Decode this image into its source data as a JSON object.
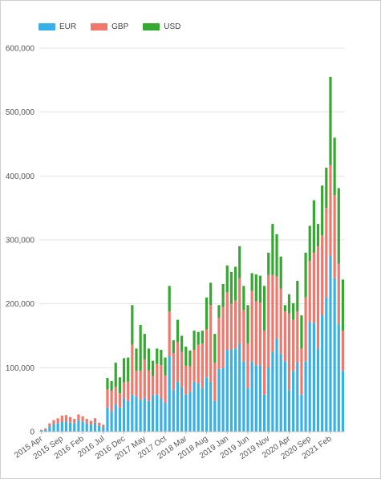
{
  "chart_data": {
    "type": "bar",
    "stacked": true,
    "legend_position": "top-left",
    "grid": true,
    "ylim": [
      0,
      600000
    ],
    "yticks": [
      0,
      100000,
      200000,
      300000,
      400000,
      500000,
      600000
    ],
    "ytick_labels": [
      "0",
      "100,000",
      "200,000",
      "300,000",
      "400,000",
      "500,000",
      "600,000"
    ],
    "xtick_labels": [
      "2015 Apr",
      "2015 Sep",
      "2016 Feb",
      "2016 Jul",
      "2016 Dec",
      "2017 May",
      "2017 Oct",
      "2018 Mar",
      "2018 Aug",
      "2019 Jan",
      "2019 Jun",
      "2019 Nov",
      "2020 Apr",
      "2020 Sep",
      "2021 Feb"
    ],
    "xtick_every": 5,
    "series": [
      {
        "name": "EUR",
        "color": "#36b1e8",
        "values": [
          2000,
          3000,
          8000,
          12000,
          13000,
          15000,
          16000,
          14000,
          13000,
          18000,
          16000,
          13000,
          11000,
          14000,
          9000,
          7000,
          38000,
          32000,
          43000,
          38000,
          52000,
          48000,
          58000,
          55000,
          50000,
          53000,
          48000,
          57000,
          58000,
          52000,
          45000,
          118000,
          65000,
          78000,
          70000,
          58000,
          62000,
          78000,
          76000,
          68000,
          85000,
          78000,
          48000,
          98000,
          100000,
          128000,
          128000,
          130000,
          138000,
          110000,
          68000,
          110000,
          104000,
          104000,
          58000,
          100000,
          125000,
          145000,
          122000,
          110000,
          65000,
          95000,
          108000,
          58000,
          110000,
          172000,
          170000,
          130000,
          182000,
          210000,
          275000,
          240000,
          168000,
          95000
        ]
      },
      {
        "name": "GBP",
        "color": "#f0776b",
        "values": [
          1000,
          2000,
          5000,
          6000,
          8000,
          10000,
          10000,
          9000,
          7000,
          9000,
          8000,
          7000,
          6000,
          7000,
          5000,
          4000,
          28000,
          32000,
          27000,
          22000,
          25000,
          30000,
          78000,
          40000,
          45000,
          60000,
          48000,
          30000,
          48000,
          52000,
          43000,
          70000,
          58000,
          62000,
          55000,
          45000,
          40000,
          50000,
          60000,
          70000,
          75000,
          120000,
          60000,
          80000,
          95000,
          90000,
          72000,
          75000,
          102000,
          80000,
          70000,
          110000,
          100000,
          98000,
          100000,
          145000,
          120000,
          98000,
          102000,
          78000,
          120000,
          80000,
          80000,
          72000,
          100000,
          95000,
          110000,
          160000,
          125000,
          140000,
          142000,
          130000,
          95000,
          63000
        ]
      },
      {
        "name": "USD",
        "color": "#35a832",
        "values": [
          0,
          0,
          0,
          0,
          0,
          0,
          0,
          0,
          0,
          0,
          0,
          0,
          0,
          0,
          0,
          0,
          18000,
          15000,
          38000,
          25000,
          38000,
          38000,
          62000,
          35000,
          72000,
          40000,
          34000,
          24000,
          24000,
          24000,
          28000,
          40000,
          20000,
          35000,
          25000,
          30000,
          25000,
          30000,
          20000,
          20000,
          50000,
          35000,
          45000,
          20000,
          36000,
          42000,
          50000,
          53000,
          50000,
          38000,
          60000,
          28000,
          42000,
          42000,
          70000,
          35000,
          80000,
          66000,
          50000,
          10000,
          30000,
          26000,
          48000,
          52000,
          70000,
          55000,
          82000,
          35000,
          78000,
          63000,
          138000,
          90000,
          118000,
          80000
        ]
      }
    ]
  }
}
